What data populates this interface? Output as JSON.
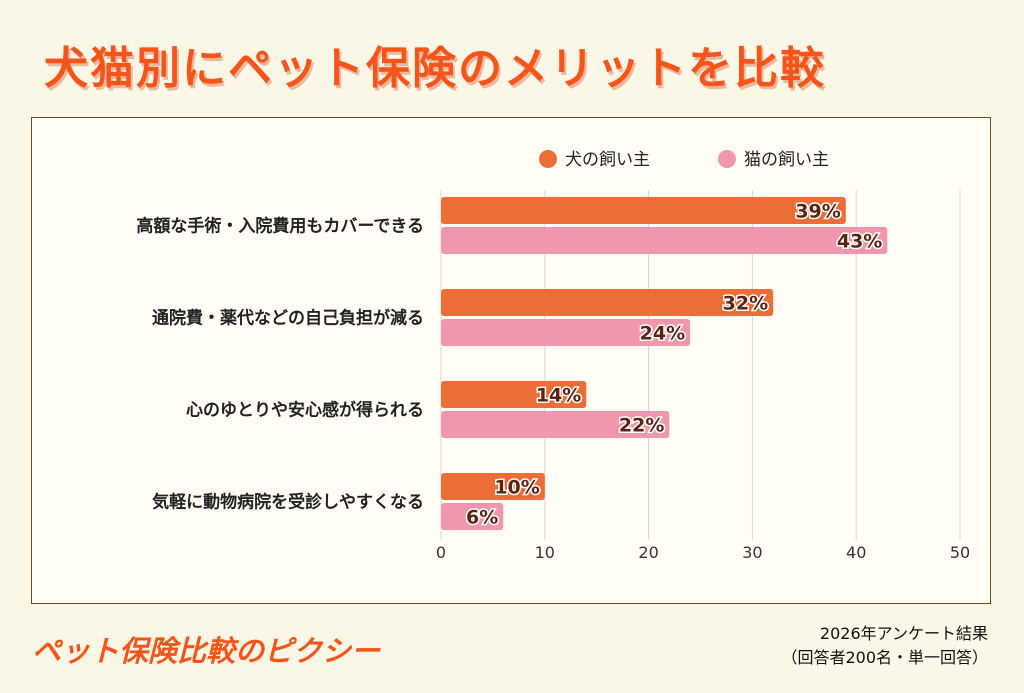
{
  "title": "犬猫別にペット保険のメリットを比較",
  "brand": "ペット保険比較のピクシー",
  "note": [
    "2026年アンケート結果",
    "（回答者200名・単一回答）"
  ],
  "chart_data": {
    "type": "bar",
    "orientation": "horizontal",
    "categories": [
      "高額な手術・入院費用もカバーできる",
      "通院費・薬代などの自己負担が減る",
      "心のゆとりや安心感が得られる",
      "気軽に動物病院を受診しやすくなる"
    ],
    "series": [
      {
        "name": "犬の飼い主",
        "values": [
          39,
          32,
          14,
          10
        ],
        "color": "#ec6e36"
      },
      {
        "name": "猫の飼い主",
        "values": [
          43,
          24,
          22,
          6
        ],
        "color": "#f097ae"
      }
    ],
    "xlim": [
      0,
      50
    ],
    "xticks": [
      0,
      10,
      20,
      30,
      40,
      50
    ],
    "value_suffix": "%",
    "grid": true,
    "legend": "top-right"
  }
}
